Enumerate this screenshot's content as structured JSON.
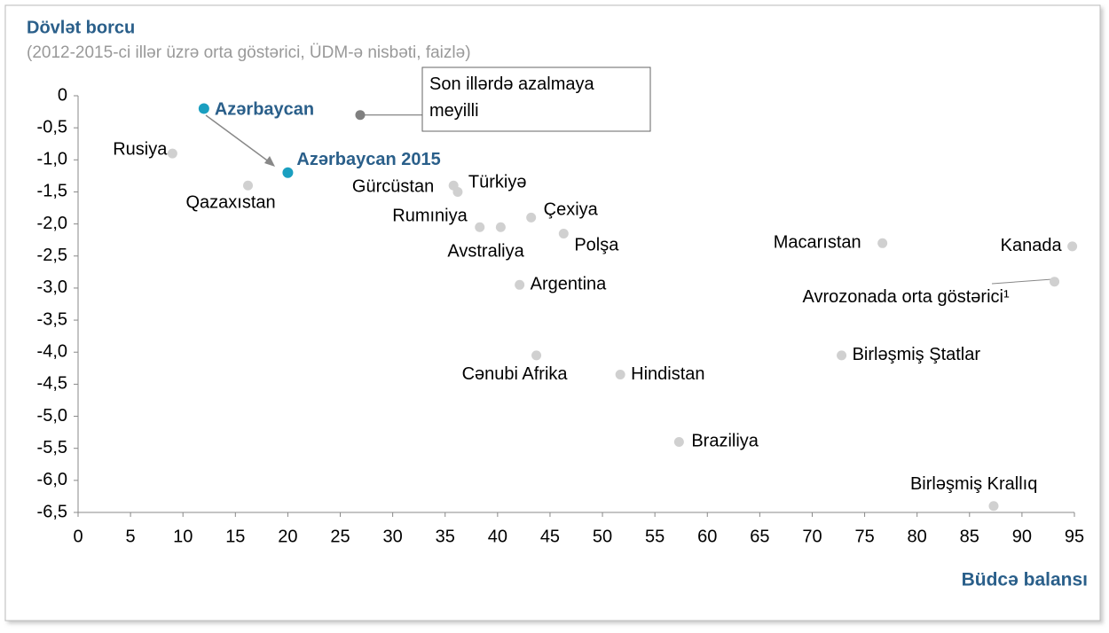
{
  "chart_data": {
    "type": "scatter",
    "title": "Dövlət borcu",
    "subtitle": "(2012-2015-ci illər üzrə orta göstərici, ÜDM-ə nisbəti, faizlə)",
    "x_label": "Büdcə balansı",
    "xlim": [
      0,
      95
    ],
    "xticks": [
      0,
      5,
      10,
      15,
      20,
      25,
      30,
      35,
      40,
      45,
      50,
      55,
      60,
      65,
      70,
      75,
      80,
      85,
      90,
      95
    ],
    "ylim": [
      -6.5,
      0
    ],
    "yticks": [
      0,
      {
        "value": -0.5,
        "label": "-0,5"
      },
      {
        "value": -1,
        "label": "-1,0"
      },
      {
        "value": -1.5,
        "label": "-1,5"
      },
      {
        "value": -2,
        "label": "-2,0"
      },
      {
        "value": -2.5,
        "label": "-2,5"
      },
      {
        "value": -3,
        "label": "-3,0"
      },
      {
        "value": -3.5,
        "label": "-3,5"
      },
      {
        "value": -4,
        "label": "-4,0"
      },
      {
        "value": -4.5,
        "label": "-4,5"
      },
      {
        "value": -5,
        "label": "-5,0"
      },
      {
        "value": -5.5,
        "label": "-5,5"
      },
      {
        "value": -6,
        "label": "-6,0"
      },
      {
        "value": -6.5,
        "label": "-6,5"
      }
    ],
    "grid": false,
    "points": [
      {
        "name": "Azərbaycan",
        "x": 12.0,
        "y": -0.2,
        "color": "#1a9fc0"
      },
      {
        "name": "Azərbaycan 2015",
        "x": 20.0,
        "y": -1.2,
        "color": "#1a9fc0"
      },
      {
        "name": "Son illərdə azalmaya meyilli",
        "x": 26.9,
        "y": -0.3,
        "color": "#808080"
      },
      {
        "name": "Rusiya",
        "x": 9.0,
        "y": -0.9,
        "color": "#d0d0d0"
      },
      {
        "name": "Qazaxıstan",
        "x": 16.2,
        "y": -1.4,
        "color": "#d0d0d0"
      },
      {
        "name": "Gürcüstan",
        "x": 35.8,
        "y": -1.4,
        "color": "#d0d0d0"
      },
      {
        "name": "Türkiyə",
        "x": 36.2,
        "y": -1.5,
        "color": "#d0d0d0"
      },
      {
        "name": "Rumıniya",
        "x": 38.3,
        "y": -2.05,
        "color": "#d0d0d0"
      },
      {
        "name": "Avstraliya",
        "x": 40.3,
        "y": -2.05,
        "color": "#d0d0d0"
      },
      {
        "name": "Çexiya",
        "x": 43.2,
        "y": -1.9,
        "color": "#d0d0d0"
      },
      {
        "name": "Polşa",
        "x": 46.3,
        "y": -2.15,
        "color": "#d0d0d0"
      },
      {
        "name": "Argentina",
        "x": 42.1,
        "y": -2.95,
        "color": "#d0d0d0"
      },
      {
        "name": "Cənubi Afrika",
        "x": 43.7,
        "y": -4.05,
        "color": "#d0d0d0"
      },
      {
        "name": "Hindistan",
        "x": 51.7,
        "y": -4.35,
        "color": "#d0d0d0"
      },
      {
        "name": "Braziliya",
        "x": 57.3,
        "y": -5.4,
        "color": "#d0d0d0"
      },
      {
        "name": "Macarıstan",
        "x": 76.7,
        "y": -2.3,
        "color": "#d0d0d0"
      },
      {
        "name": "Kanada",
        "x": 94.8,
        "y": -2.35,
        "color": "#d0d0d0"
      },
      {
        "name": "Avrozonada orta göstərici¹",
        "x": 93.1,
        "y": -2.9,
        "color": "#d0d0d0"
      },
      {
        "name": "Birləşmiş Ştatlar",
        "x": 72.8,
        "y": -4.05,
        "color": "#d0d0d0"
      },
      {
        "name": "Birləşmiş Krallıq",
        "x": 87.3,
        "y": -6.4,
        "color": "#d0d0d0"
      }
    ]
  }
}
